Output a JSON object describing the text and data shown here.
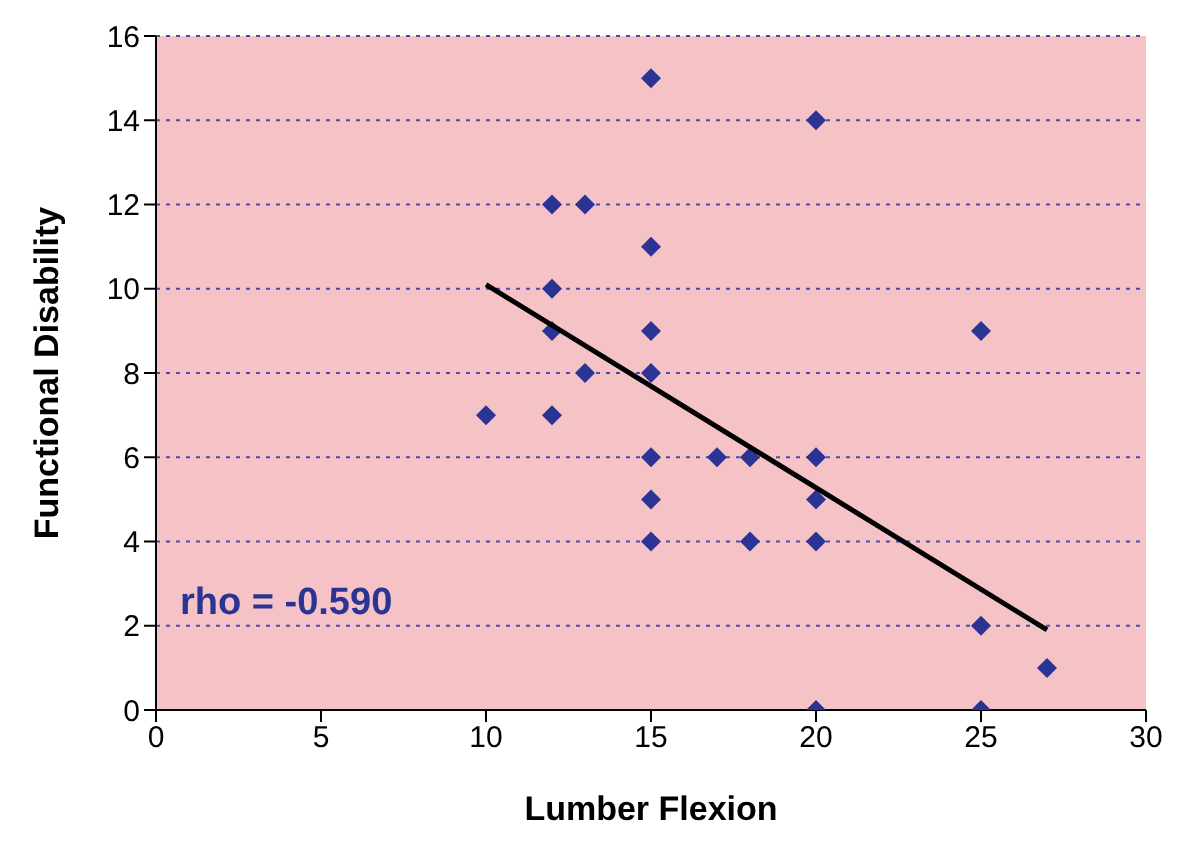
{
  "chart_data": {
    "type": "scatter",
    "xlabel": "Lumber Flexion",
    "ylabel": "Functional Disability",
    "series": [
      {
        "color": "#2b3494",
        "marker": "diamond",
        "x": [
          15,
          20,
          12,
          13,
          15,
          12,
          12,
          15,
          25,
          13,
          15,
          10,
          12,
          15,
          17,
          18,
          20,
          15,
          20,
          15,
          18,
          20,
          25,
          27,
          20,
          25
        ],
        "values": [
          15,
          14,
          12,
          12,
          11,
          10,
          9,
          9,
          9,
          8,
          8,
          7,
          7,
          6,
          6,
          6,
          6,
          5,
          5,
          4,
          4,
          4,
          2,
          1,
          0,
          0
        ]
      },
      {
        "type": "line",
        "color": "#000000",
        "marker": "none",
        "x": [
          10,
          27
        ],
        "values": [
          10.1,
          1.9
        ]
      }
    ],
    "xlim": [
      0,
      30
    ],
    "xticks": [
      0,
      5,
      10,
      15,
      20,
      25,
      30
    ],
    "ylim": [
      0,
      16
    ],
    "yticks": [
      0,
      2,
      4,
      6,
      8,
      10,
      12,
      14,
      16
    ],
    "grid": "y",
    "annotations": [
      "rho = -0.590"
    ]
  }
}
